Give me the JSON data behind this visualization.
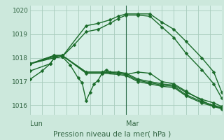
{
  "background_color": "#cce8dc",
  "plot_bg_color": "#d8f0e8",
  "grid_color": "#a8ccbc",
  "line_color": "#1a6b2a",
  "marker": "D",
  "markersize": 2.5,
  "linewidth": 1.0,
  "xlabel": "Pression niveau de la mer( hPa )",
  "ylim": [
    1015.6,
    1020.2
  ],
  "yticks": [
    1016,
    1017,
    1018,
    1019,
    1020
  ],
  "xlim": [
    0,
    48
  ],
  "lun_x": 0,
  "mar_x": 24,
  "vline_x": 24,
  "series": [
    [
      0,
      1017.1,
      3,
      1017.45,
      5,
      1017.75,
      6,
      1018.0,
      8,
      1018.05,
      14,
      1019.35,
      17,
      1019.45,
      20,
      1019.6,
      22,
      1019.75,
      24,
      1019.85,
      27,
      1019.85,
      30,
      1019.85,
      33,
      1019.5,
      36,
      1019.2,
      39,
      1018.7,
      43,
      1018.0,
      46,
      1017.4,
      48,
      1016.55
    ],
    [
      0,
      1017.45,
      5,
      1017.75,
      6,
      1018.0,
      8,
      1018.05,
      11,
      1018.55,
      14,
      1019.1,
      17,
      1019.2,
      20,
      1019.45,
      22,
      1019.65,
      24,
      1019.8,
      27,
      1019.8,
      30,
      1019.75,
      33,
      1019.3,
      36,
      1018.85,
      39,
      1018.2,
      43,
      1017.5,
      46,
      1016.9,
      48,
      1016.3
    ],
    [
      0,
      1017.75,
      6,
      1018.0,
      8,
      1018.05,
      10,
      1017.7,
      12,
      1017.15,
      13,
      1016.95,
      14,
      1016.2,
      15,
      1016.55,
      16,
      1016.9,
      17,
      1017.05,
      18,
      1017.35,
      19,
      1017.5,
      20,
      1017.4,
      22,
      1017.35,
      24,
      1017.3,
      27,
      1017.4,
      30,
      1017.35,
      33,
      1017.0,
      36,
      1016.9,
      39,
      1016.6,
      43,
      1016.2,
      46,
      1015.95,
      48,
      1015.9
    ],
    [
      0,
      1017.75,
      6,
      1018.05,
      8,
      1018.1,
      14,
      1017.4,
      18,
      1017.4,
      22,
      1017.4,
      24,
      1017.35,
      27,
      1017.1,
      30,
      1017.0,
      33,
      1016.9,
      36,
      1016.85,
      39,
      1016.55,
      43,
      1016.25,
      46,
      1016.1,
      48,
      1015.95
    ],
    [
      0,
      1017.75,
      6,
      1018.1,
      8,
      1018.1,
      14,
      1017.4,
      18,
      1017.4,
      22,
      1017.35,
      24,
      1017.3,
      27,
      1017.05,
      30,
      1016.95,
      33,
      1016.85,
      36,
      1016.8,
      39,
      1016.45,
      43,
      1016.15,
      46,
      1016.0,
      48,
      1015.9
    ],
    [
      0,
      1017.75,
      6,
      1018.1,
      8,
      1018.1,
      14,
      1017.35,
      18,
      1017.35,
      22,
      1017.3,
      24,
      1017.25,
      27,
      1017.0,
      30,
      1016.9,
      33,
      1016.8,
      36,
      1016.75,
      39,
      1016.4,
      43,
      1016.1,
      46,
      1015.95,
      48,
      1015.85
    ]
  ]
}
